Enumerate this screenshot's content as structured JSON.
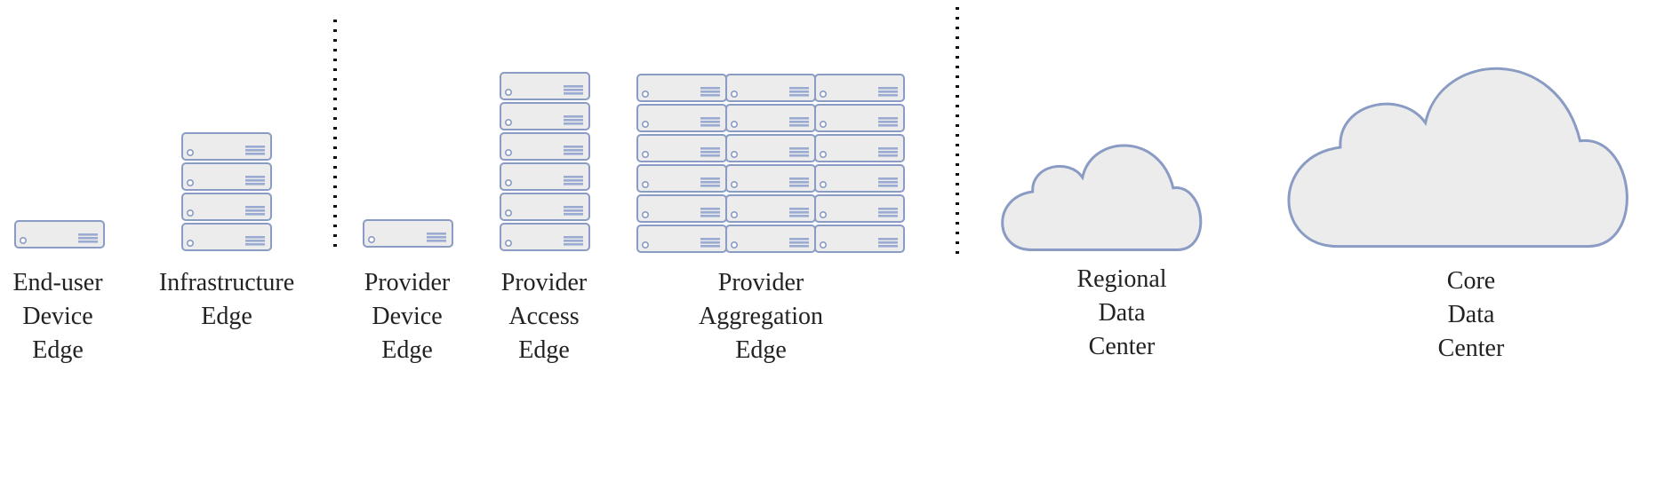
{
  "colors": {
    "server_fill": "#ececec",
    "server_stroke": "#8a9cc4",
    "vent_fill": "#9aaad0",
    "cloud_fill": "#ececec",
    "cloud_stroke": "#8a9cc4",
    "divider": "#111111",
    "text": "#222222"
  },
  "tiers": [
    {
      "id": "end-user-device-edge",
      "lines": [
        "End-user",
        "Device",
        "Edge"
      ],
      "icon": "server-unit",
      "stack": {
        "columns": 1,
        "rows": 1
      }
    },
    {
      "id": "infrastructure-edge",
      "lines": [
        "Infrastructure",
        "Edge"
      ],
      "icon": "server-rack",
      "stack": {
        "columns": 1,
        "rows": 4
      }
    },
    {
      "id": "provider-device-edge",
      "lines": [
        "Provider",
        "Device",
        "Edge"
      ],
      "icon": "server-unit",
      "stack": {
        "columns": 1,
        "rows": 1
      }
    },
    {
      "id": "provider-access-edge",
      "lines": [
        "Provider",
        "Access",
        "Edge"
      ],
      "icon": "server-rack",
      "stack": {
        "columns": 1,
        "rows": 6
      }
    },
    {
      "id": "provider-aggregation-edge",
      "lines": [
        "Provider",
        "Aggregation",
        "Edge"
      ],
      "icon": "server-rack",
      "stack": {
        "columns": 3,
        "rows": 6
      }
    },
    {
      "id": "regional-data-center",
      "lines": [
        "Regional",
        "Data",
        "Center"
      ],
      "icon": "cloud"
    },
    {
      "id": "core-data-center",
      "lines": [
        "Core",
        "Data",
        "Center"
      ],
      "icon": "cloud"
    }
  ],
  "dividers": 2
}
